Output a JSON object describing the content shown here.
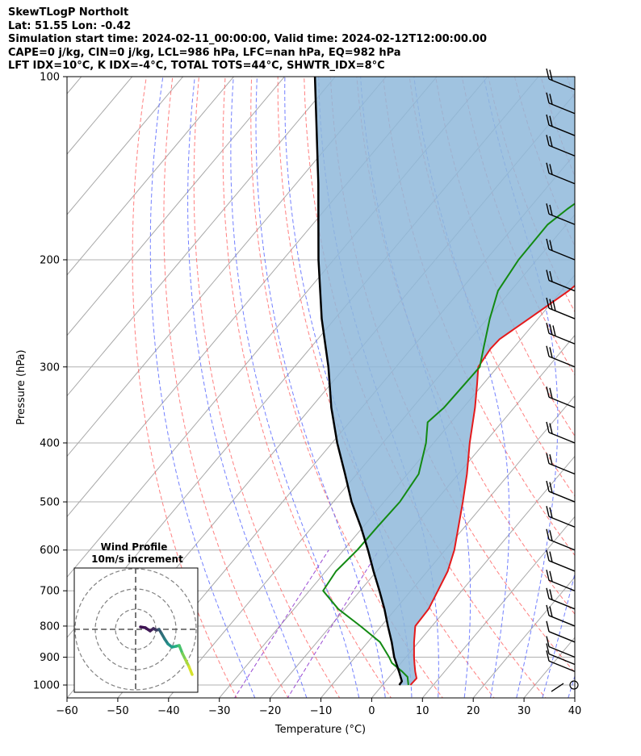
{
  "header": {
    "line1": "SkewTLogP Northolt",
    "line2": "Lat: 51.55   Lon: -0.42",
    "line3": "Simulation start time: 2024-02-11_00:00:00, Valid time: 2024-02-12T12:00:00.00",
    "line4": "CAPE=0 j/kg, CIN=0 j/kg, LCL=986 hPa, LFC=nan hPa, EQ=982 hPa",
    "line5": "LFT IDX=10°C, K IDX=-4°C, TOTAL TOTS=44°C, SHWTR_IDX=8°C"
  },
  "chart_data": {
    "type": "line",
    "xlabel": "Temperature (°C)",
    "ylabel": "Pressure (hPa)",
    "xlim": [
      -60,
      40
    ],
    "ylim": [
      1050,
      100
    ],
    "y_scale": "log",
    "skew": true,
    "grid": true,
    "x_ticks": [
      "−60",
      "−50",
      "−40",
      "−30",
      "−20",
      "−10",
      "0",
      "10",
      "20",
      "30",
      "40"
    ],
    "x_tick_values": [
      -60,
      -50,
      -40,
      -30,
      -20,
      -10,
      0,
      10,
      20,
      30,
      40
    ],
    "y_ticks": [
      "100",
      "200",
      "300",
      "400",
      "500",
      "600",
      "700",
      "800",
      "900",
      "1000"
    ],
    "y_tick_values": [
      100,
      200,
      300,
      400,
      500,
      600,
      700,
      800,
      900,
      1000
    ],
    "colors": {
      "temperature": "#e41a1c",
      "dewpoint": "#138a13",
      "parcel": "#000000",
      "shading": "#8fb9da",
      "isotherm": "#a8a8a8",
      "dry_adiabat": "#ff6a6a",
      "moist_adiabat": "#5a6aff",
      "mixing_ratio": "#9a4bd3"
    },
    "series": [
      {
        "name": "Temperature",
        "points": [
          [
            1000,
            5.5
          ],
          [
            975,
            5.6
          ],
          [
            950,
            4.2
          ],
          [
            925,
            2.9
          ],
          [
            900,
            1.6
          ],
          [
            850,
            -0.9
          ],
          [
            800,
            -3.3
          ],
          [
            750,
            -3.5
          ],
          [
            700,
            -4.7
          ],
          [
            650,
            -6.0
          ],
          [
            600,
            -8.2
          ],
          [
            550,
            -11.2
          ],
          [
            500,
            -14.5
          ],
          [
            450,
            -18.3
          ],
          [
            400,
            -22.9
          ],
          [
            350,
            -27.7
          ],
          [
            320,
            -31.2
          ],
          [
            300,
            -33.8
          ],
          [
            280,
            -34.4
          ],
          [
            270,
            -34.2
          ],
          [
            250,
            -31.8
          ],
          [
            225,
            -28.6
          ],
          [
            200,
            -26.3
          ],
          [
            175,
            -24.3
          ],
          [
            150,
            -22.3
          ],
          [
            130,
            -21.3
          ],
          [
            115,
            -20.1
          ],
          [
            100,
            -20.3
          ]
        ]
      },
      {
        "name": "Dewpoint",
        "points": [
          [
            1000,
            5.1
          ],
          [
            970,
            3.6
          ],
          [
            950,
            1.6
          ],
          [
            920,
            -1.8
          ],
          [
            900,
            -3.3
          ],
          [
            850,
            -7.6
          ],
          [
            800,
            -14.1
          ],
          [
            750,
            -21.3
          ],
          [
            700,
            -27.3
          ],
          [
            650,
            -28.0
          ],
          [
            600,
            -27.3
          ],
          [
            550,
            -27.2
          ],
          [
            500,
            -26.9
          ],
          [
            450,
            -27.8
          ],
          [
            400,
            -31.5
          ],
          [
            370,
            -34.6
          ],
          [
            350,
            -33.8
          ],
          [
            300,
            -33.5
          ],
          [
            280,
            -35.8
          ],
          [
            250,
            -39.5
          ],
          [
            225,
            -42.5
          ],
          [
            200,
            -43.6
          ],
          [
            175,
            -43.7
          ],
          [
            165,
            -42.4
          ],
          [
            150,
            -39.6
          ],
          [
            130,
            -36.4
          ],
          [
            115,
            -34.0
          ],
          [
            100,
            -31.5
          ]
        ]
      },
      {
        "name": "Parcel",
        "points": [
          [
            1000,
            3.3
          ],
          [
            986,
            3.2
          ],
          [
            950,
            1.0
          ],
          [
            900,
            -2.3
          ],
          [
            850,
            -5.3
          ],
          [
            800,
            -8.7
          ],
          [
            750,
            -12.2
          ],
          [
            700,
            -16.2
          ],
          [
            650,
            -20.6
          ],
          [
            600,
            -25.2
          ],
          [
            550,
            -30.4
          ],
          [
            500,
            -36.4
          ],
          [
            450,
            -42.3
          ],
          [
            400,
            -49.0
          ],
          [
            350,
            -56.0
          ],
          [
            300,
            -63.3
          ],
          [
            250,
            -72.6
          ],
          [
            200,
            -83.0
          ],
          [
            150,
            -95.6
          ],
          [
            100,
            -114.0
          ]
        ]
      }
    ],
    "wind_barbs": {
      "pressures": [
        1000,
        950,
        925,
        900,
        850,
        800,
        750,
        700,
        650,
        600,
        550,
        500,
        450,
        400,
        350,
        300,
        275,
        250,
        225,
        200,
        175,
        150,
        135,
        125,
        115,
        105
      ]
    },
    "inset": {
      "title": "Wind Profile",
      "subtitle": "10m/s increment"
    }
  }
}
